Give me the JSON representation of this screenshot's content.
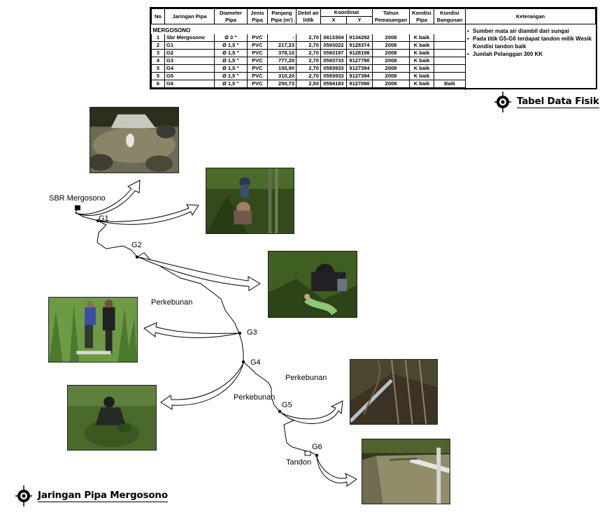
{
  "table": {
    "headers": {
      "no": "No",
      "jaringan": "Jaringan Pipa",
      "diameter_top": "Diameter",
      "diameter_bot": "Pipa",
      "jenis_top": "Jenis",
      "jenis_bot": "Pipa",
      "panjang_top": "Panjang",
      "panjang_bot": "Pipa (m')",
      "debit_top": "Debit air",
      "debit_bot": "l/dtk",
      "koordinat": "Koordinat",
      "x": "X",
      "y": "Y",
      "tahun_top": "Tahun",
      "tahun_bot": "Pemasangan",
      "kondisi_pipa_top": "Kondisi",
      "kondisi_pipa_bot": "Pipa",
      "kondisi_bangunan_top": "Kondisi",
      "kondisi_bangunan_bot": "Bangunan",
      "keterangan": "Keterangan"
    },
    "group": "MERGOSONO",
    "rows": [
      {
        "no": "1",
        "nama": "Sbr Mergosono",
        "diameter": "Ø 3 \"",
        "jenis": "PVC",
        "panjang": "-",
        "debit": "2,70",
        "x": "0613304",
        "y": "9134292",
        "tahun": "2008",
        "kondisi_pipa": "K baik",
        "kondisi_bangunan": ""
      },
      {
        "no": "2",
        "nama": "G1",
        "diameter": "Ø 1,5 \"",
        "jenis": "PVC",
        "panjang": "217,23",
        "debit": "2,70",
        "x": "0593022",
        "y": "9128374",
        "tahun": "2008",
        "kondisi_pipa": "K baik",
        "kondisi_bangunan": ""
      },
      {
        "no": "3",
        "nama": "G2",
        "diameter": "Ø 1,5 \"",
        "jenis": "PVC",
        "panjang": "378,10",
        "debit": "2,70",
        "x": "0593197",
        "y": "9128198",
        "tahun": "2008",
        "kondisi_pipa": "K baik",
        "kondisi_bangunan": ""
      },
      {
        "no": "4",
        "nama": "G3",
        "diameter": "Ø 1,5 \"",
        "jenis": "PVC",
        "panjang": "777,20",
        "debit": "2,70",
        "x": "0593733",
        "y": "9127790",
        "tahun": "2008",
        "kondisi_pipa": "K baik",
        "kondisi_bangunan": ""
      },
      {
        "no": "5",
        "nama": "G4",
        "diameter": "Ø 1,5 \"",
        "jenis": "PVC",
        "panjang": "150,90",
        "debit": "2,70",
        "x": "0593933",
        "y": "9127394",
        "tahun": "2008",
        "kondisi_pipa": "K baik",
        "kondisi_bangunan": ""
      },
      {
        "no": "5",
        "nama": "G5",
        "diameter": "Ø 1,5 \"",
        "jenis": "PVC",
        "panjang": "310,20",
        "debit": "2,70",
        "x": "0593933",
        "y": "9127394",
        "tahun": "2008",
        "kondisi_pipa": "K baik",
        "kondisi_bangunan": ""
      },
      {
        "no": "6",
        "nama": "G6",
        "diameter": "Ø 1,5 \"",
        "jenis": "PVC",
        "panjang": "250,73",
        "debit": "2,50",
        "x": "0594183",
        "y": "9127090",
        "tahun": "2008",
        "kondisi_pipa": "K baik",
        "kondisi_bangunan": "Baik"
      }
    ],
    "keterangan": [
      "Sumber mata air diambil dari sungai",
      "Pada titik G5-G6 terdapat tandon milik Wesik Kondisi tandon baik",
      "Jumlah Pelanggan 300 KK"
    ]
  },
  "titles": {
    "data_fisik": "Tabel Data Fisik",
    "jaringan": "Jaringan Pipa Mergosono"
  },
  "map_labels": {
    "sbr": "SBR Mergosono",
    "g1": "G1",
    "g2": "G2",
    "g3": "G3",
    "g4": "G4",
    "g5": "G5",
    "g6": "G6",
    "perkebunan_1": "Perkebunan",
    "perkebunan_2": "Perkebunan",
    "perkebunan_3": "Perkebunan",
    "tandon": "Tandon"
  },
  "colors": {
    "line": "#000000",
    "photo_green": "#3d5a22",
    "photo_dark": "#1f2a14"
  }
}
